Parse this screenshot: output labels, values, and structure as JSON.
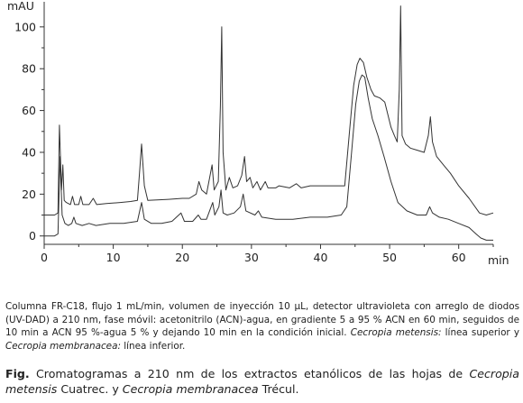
{
  "chart_data": {
    "type": "line",
    "xlabel": "min",
    "ylabel": "mAU",
    "xlim": [
      0,
      65
    ],
    "ylim": [
      -4,
      112
    ],
    "x_ticks": [
      0,
      10,
      20,
      30,
      40,
      50,
      60
    ],
    "y_ticks": [
      0,
      20,
      40,
      60,
      80,
      100
    ],
    "grid": false,
    "legend": "none",
    "series": [
      {
        "color": "#333333",
        "points": [
          [
            0,
            10
          ],
          [
            1.5,
            10
          ],
          [
            2.0,
            11
          ],
          [
            2.2,
            53
          ],
          [
            2.5,
            22
          ],
          [
            2.7,
            34
          ],
          [
            2.9,
            17
          ],
          [
            3.2,
            16
          ],
          [
            3.8,
            15
          ],
          [
            4.1,
            19
          ],
          [
            4.4,
            15
          ],
          [
            5.0,
            15
          ],
          [
            5.3,
            19
          ],
          [
            5.6,
            15
          ],
          [
            6.5,
            15
          ],
          [
            7.1,
            18
          ],
          [
            7.6,
            15
          ],
          [
            9.0,
            15.5
          ],
          [
            11.0,
            16
          ],
          [
            12.5,
            16.5
          ],
          [
            13.5,
            17
          ],
          [
            13.8,
            30
          ],
          [
            14.1,
            44
          ],
          [
            14.5,
            24
          ],
          [
            15.0,
            17
          ],
          [
            18.0,
            17.5
          ],
          [
            20.0,
            18
          ],
          [
            21.0,
            18
          ],
          [
            22.0,
            20
          ],
          [
            22.4,
            26
          ],
          [
            22.8,
            22
          ],
          [
            23.5,
            20
          ],
          [
            24.3,
            34
          ],
          [
            24.6,
            22
          ],
          [
            25.2,
            26
          ],
          [
            25.5,
            62
          ],
          [
            25.7,
            100
          ],
          [
            25.9,
            40
          ],
          [
            26.3,
            22
          ],
          [
            26.8,
            28
          ],
          [
            27.3,
            23
          ],
          [
            28.0,
            24
          ],
          [
            28.6,
            29
          ],
          [
            29.0,
            38
          ],
          [
            29.3,
            26
          ],
          [
            29.8,
            28
          ],
          [
            30.2,
            23
          ],
          [
            30.8,
            26
          ],
          [
            31.3,
            22
          ],
          [
            32.0,
            26
          ],
          [
            32.4,
            23
          ],
          [
            33.5,
            23
          ],
          [
            34.0,
            24
          ],
          [
            35.5,
            23
          ],
          [
            36.5,
            25
          ],
          [
            37.2,
            23
          ],
          [
            38.5,
            24
          ],
          [
            40.0,
            24
          ],
          [
            42.0,
            24
          ],
          [
            43.5,
            24
          ],
          [
            44.2,
            50
          ],
          [
            44.8,
            72
          ],
          [
            45.3,
            82
          ],
          [
            45.7,
            85
          ],
          [
            46.2,
            83
          ],
          [
            46.7,
            76
          ],
          [
            47.3,
            70
          ],
          [
            47.8,
            67
          ],
          [
            48.6,
            66
          ],
          [
            49.3,
            64
          ],
          [
            50.2,
            52
          ],
          [
            50.7,
            48
          ],
          [
            51.1,
            45
          ],
          [
            51.4,
            70
          ],
          [
            51.6,
            110
          ],
          [
            51.8,
            48
          ],
          [
            52.3,
            44
          ],
          [
            53.0,
            42
          ],
          [
            54.0,
            41
          ],
          [
            55.0,
            40
          ],
          [
            55.6,
            48
          ],
          [
            55.9,
            57
          ],
          [
            56.2,
            45
          ],
          [
            56.8,
            38
          ],
          [
            57.8,
            34
          ],
          [
            58.8,
            30
          ],
          [
            60.0,
            24
          ],
          [
            61.5,
            18
          ],
          [
            63.0,
            11
          ],
          [
            64.0,
            10
          ],
          [
            65.0,
            11
          ]
        ]
      },
      {
        "color": "#333333",
        "points": [
          [
            0,
            0
          ],
          [
            1.5,
            0
          ],
          [
            2.0,
            1
          ],
          [
            2.3,
            38
          ],
          [
            2.6,
            10
          ],
          [
            3.0,
            6
          ],
          [
            3.5,
            5
          ],
          [
            4.0,
            6
          ],
          [
            4.3,
            9
          ],
          [
            4.6,
            6
          ],
          [
            5.5,
            5
          ],
          [
            6.5,
            6
          ],
          [
            7.5,
            5
          ],
          [
            9.5,
            6
          ],
          [
            11.5,
            6
          ],
          [
            13.5,
            7
          ],
          [
            14.1,
            16
          ],
          [
            14.5,
            8
          ],
          [
            15.5,
            6
          ],
          [
            17.0,
            6
          ],
          [
            18.5,
            7
          ],
          [
            19.8,
            11
          ],
          [
            20.3,
            7
          ],
          [
            21.5,
            7
          ],
          [
            22.3,
            10
          ],
          [
            22.7,
            8
          ],
          [
            23.5,
            8
          ],
          [
            24.4,
            16
          ],
          [
            24.7,
            10
          ],
          [
            25.3,
            14
          ],
          [
            25.6,
            22
          ],
          [
            25.9,
            11
          ],
          [
            26.5,
            10
          ],
          [
            27.5,
            11
          ],
          [
            28.4,
            14
          ],
          [
            28.8,
            20
          ],
          [
            29.2,
            12
          ],
          [
            30.5,
            10
          ],
          [
            31.0,
            12
          ],
          [
            31.5,
            9
          ],
          [
            33.5,
            8
          ],
          [
            36.0,
            8
          ],
          [
            38.5,
            9
          ],
          [
            41.0,
            9
          ],
          [
            43.0,
            10
          ],
          [
            43.8,
            14
          ],
          [
            44.5,
            40
          ],
          [
            45.1,
            63
          ],
          [
            45.6,
            74
          ],
          [
            46.0,
            77
          ],
          [
            46.4,
            76
          ],
          [
            46.9,
            66
          ],
          [
            47.5,
            56
          ],
          [
            48.3,
            48
          ],
          [
            49.2,
            38
          ],
          [
            50.2,
            26
          ],
          [
            51.2,
            16
          ],
          [
            52.5,
            12
          ],
          [
            54.0,
            10
          ],
          [
            55.3,
            10
          ],
          [
            55.8,
            14
          ],
          [
            56.2,
            11
          ],
          [
            57.2,
            9
          ],
          [
            58.5,
            8
          ],
          [
            60.0,
            6
          ],
          [
            61.5,
            4
          ],
          [
            62.5,
            1
          ],
          [
            63.2,
            -1
          ],
          [
            64.0,
            -2
          ],
          [
            65.0,
            -2
          ]
        ]
      }
    ]
  },
  "caption": {
    "methods_pre_mu": "Columna FR-C18, flujo 1 mL/min, volumen de inyección 10 ",
    "mu": "μ",
    "methods_post_mu": "L, detector ultravioleta con arreglo de diodos (UV-DAD) a 210 nm, fase móvil: acetonitrilo (ACN)-agua, en gradiente 5 a 95 % ACN en 60 min, seguidos de 10 min a ACN 95 %-agua 5 % y dejando 10 min en la condición inicial.",
    "species1": "Cecropia metensis:",
    "line_upper": " línea superior y ",
    "species2": "Cecropia membranacea:",
    "line_lower": " línea inferior.",
    "fig_label": "Fig.",
    "fig_text_1": " Cromatogramas a 210 nm de los extractos etanólicos de las hojas de ",
    "fig_species1": "Cecropia metensis",
    "fig_text_2": " Cuatrec. y ",
    "fig_species2": "Cecropia membranacea",
    "fig_text_3": " Trécul."
  }
}
